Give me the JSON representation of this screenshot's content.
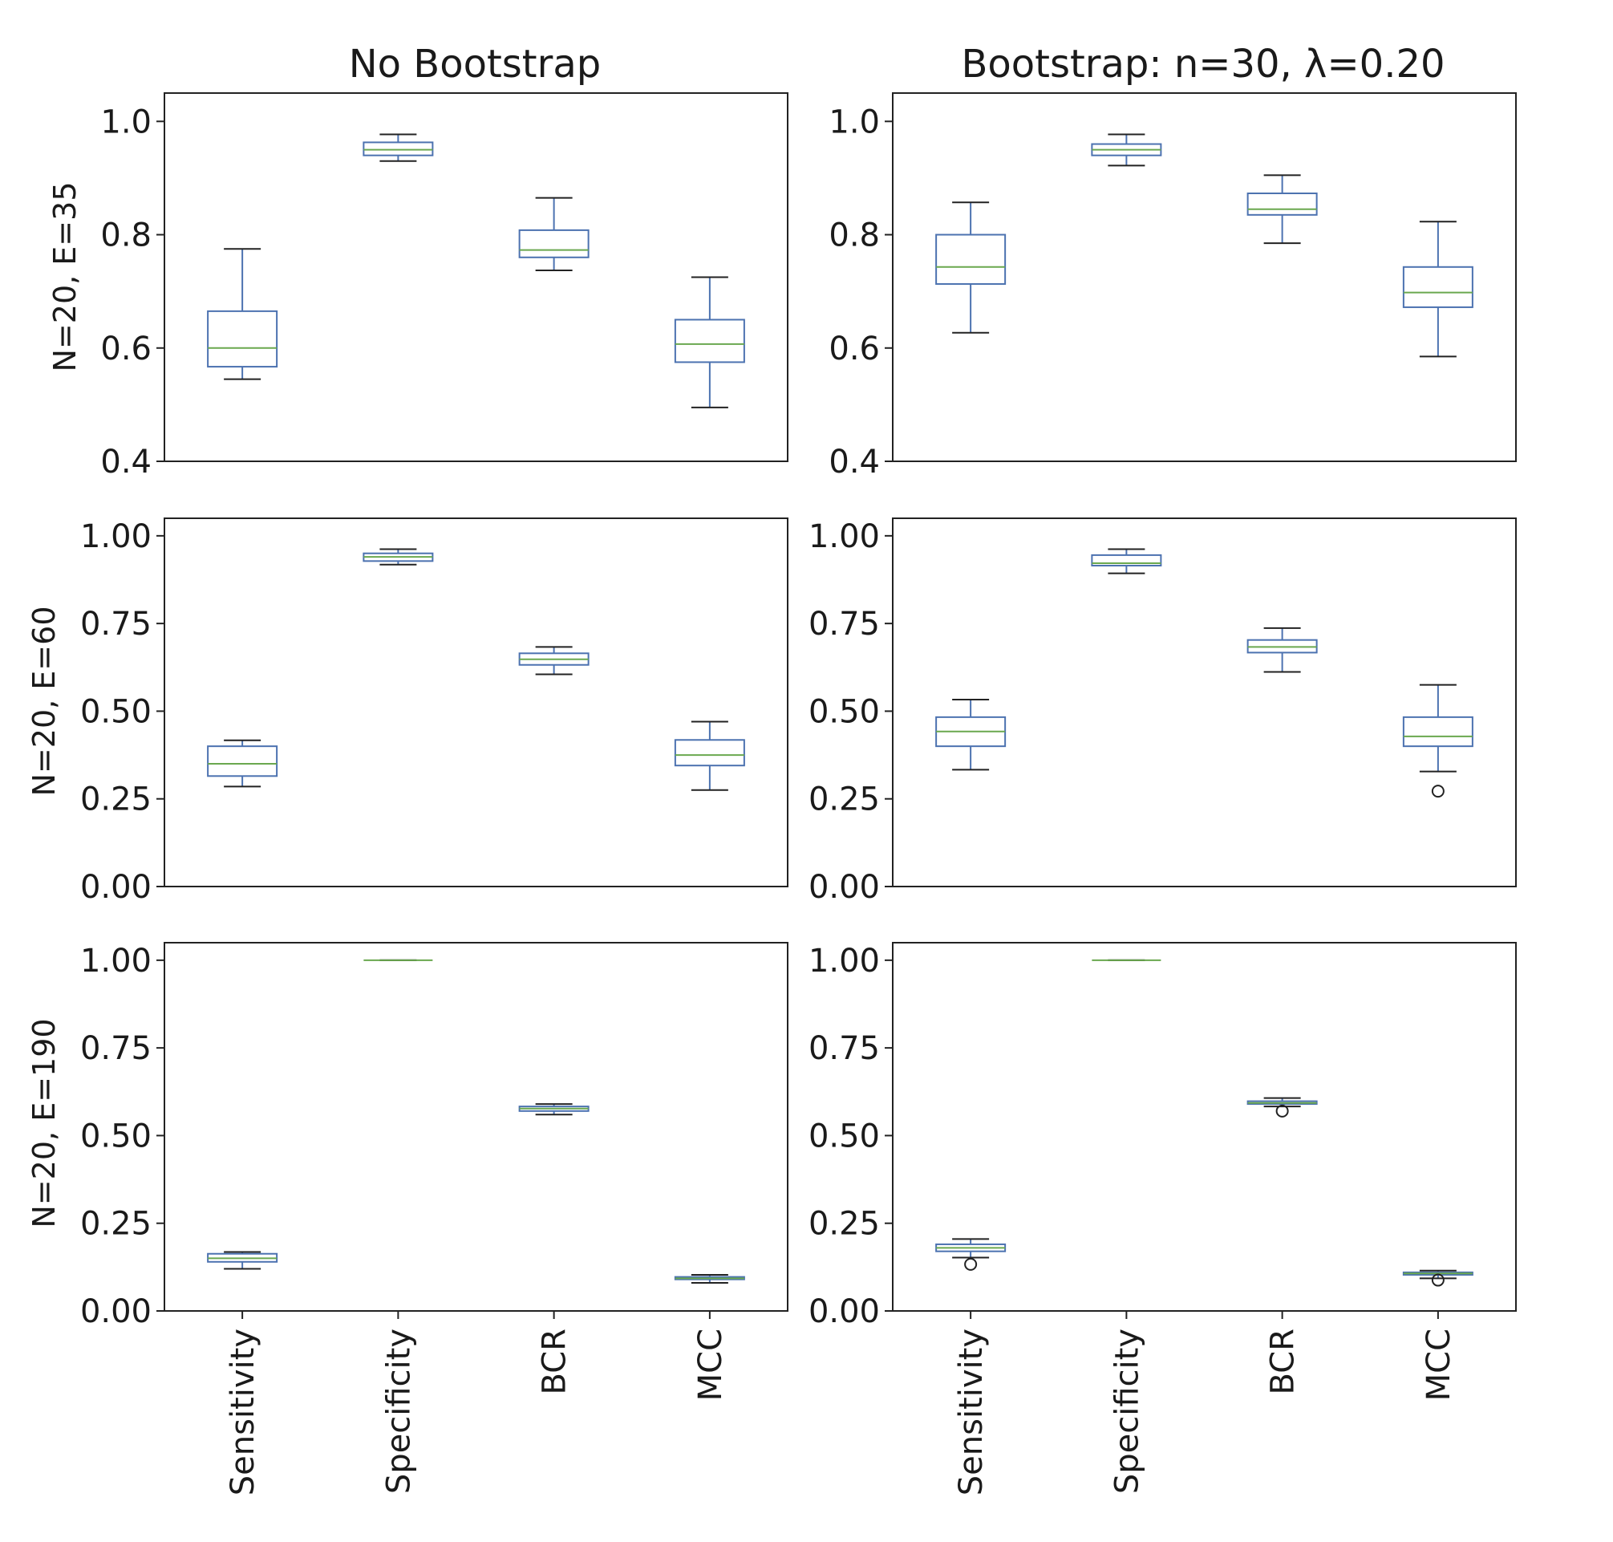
{
  "colors": {
    "box": "#4c72b0",
    "median": "#6aa84f",
    "whisker": "#222222",
    "frame": "#222222"
  },
  "column_titles": [
    "No Bootstrap",
    "Bootstrap: n=30, λ=0.20"
  ],
  "row_labels": [
    "N=20, E=35",
    "N=20, E=60",
    "N=20, E=190"
  ],
  "chart_data": [
    {
      "type": "box",
      "row": 0,
      "col": 0,
      "title": "No Bootstrap",
      "ylabel": "N=20, E=35",
      "categories": [
        "Sensitivity",
        "Specificity",
        "BCR",
        "MCC"
      ],
      "ylim": [
        0.4,
        1.05
      ],
      "yticks": [
        0.4,
        0.6,
        0.8,
        1.0
      ],
      "ytick_labels": [
        "0.4",
        "0.6",
        "0.8",
        "1.0"
      ],
      "boxes": [
        {
          "whislo": 0.545,
          "q1": 0.567,
          "med": 0.6,
          "q3": 0.665,
          "whishi": 0.775,
          "fliers": []
        },
        {
          "whislo": 0.93,
          "q1": 0.94,
          "med": 0.95,
          "q3": 0.963,
          "whishi": 0.977,
          "fliers": []
        },
        {
          "whislo": 0.737,
          "q1": 0.76,
          "med": 0.773,
          "q3": 0.808,
          "whishi": 0.865,
          "fliers": []
        },
        {
          "whislo": 0.495,
          "q1": 0.575,
          "med": 0.607,
          "q3": 0.65,
          "whishi": 0.725,
          "fliers": []
        }
      ]
    },
    {
      "type": "box",
      "row": 0,
      "col": 1,
      "title": "Bootstrap: n=30, λ=0.20",
      "ylabel": "",
      "categories": [
        "Sensitivity",
        "Specificity",
        "BCR",
        "MCC"
      ],
      "ylim": [
        0.4,
        1.05
      ],
      "yticks": [
        0.4,
        0.6,
        0.8,
        1.0
      ],
      "ytick_labels": [
        "0.4",
        "0.6",
        "0.8",
        "1.0"
      ],
      "boxes": [
        {
          "whislo": 0.627,
          "q1": 0.713,
          "med": 0.743,
          "q3": 0.8,
          "whishi": 0.857,
          "fliers": []
        },
        {
          "whislo": 0.922,
          "q1": 0.94,
          "med": 0.95,
          "q3": 0.96,
          "whishi": 0.977,
          "fliers": []
        },
        {
          "whislo": 0.785,
          "q1": 0.835,
          "med": 0.845,
          "q3": 0.873,
          "whishi": 0.905,
          "fliers": []
        },
        {
          "whislo": 0.585,
          "q1": 0.672,
          "med": 0.698,
          "q3": 0.743,
          "whishi": 0.823,
          "fliers": []
        }
      ]
    },
    {
      "type": "box",
      "row": 1,
      "col": 0,
      "title": "",
      "ylabel": "N=20, E=60",
      "categories": [
        "Sensitivity",
        "Specificity",
        "BCR",
        "MCC"
      ],
      "ylim": [
        0.0,
        1.05
      ],
      "yticks": [
        0.0,
        0.25,
        0.5,
        0.75,
        1.0
      ],
      "ytick_labels": [
        "0.00",
        "0.25",
        "0.50",
        "0.75",
        "1.00"
      ],
      "boxes": [
        {
          "whislo": 0.285,
          "q1": 0.315,
          "med": 0.35,
          "q3": 0.4,
          "whishi": 0.417,
          "fliers": []
        },
        {
          "whislo": 0.918,
          "q1": 0.928,
          "med": 0.94,
          "q3": 0.95,
          "whishi": 0.962,
          "fliers": []
        },
        {
          "whislo": 0.605,
          "q1": 0.632,
          "med": 0.648,
          "q3": 0.665,
          "whishi": 0.683,
          "fliers": []
        },
        {
          "whislo": 0.275,
          "q1": 0.345,
          "med": 0.375,
          "q3": 0.418,
          "whishi": 0.47,
          "fliers": []
        }
      ]
    },
    {
      "type": "box",
      "row": 1,
      "col": 1,
      "title": "",
      "ylabel": "",
      "categories": [
        "Sensitivity",
        "Specificity",
        "BCR",
        "MCC"
      ],
      "ylim": [
        0.0,
        1.05
      ],
      "yticks": [
        0.0,
        0.25,
        0.5,
        0.75,
        1.0
      ],
      "ytick_labels": [
        "0.00",
        "0.25",
        "0.50",
        "0.75",
        "1.00"
      ],
      "boxes": [
        {
          "whislo": 0.333,
          "q1": 0.4,
          "med": 0.442,
          "q3": 0.483,
          "whishi": 0.533,
          "fliers": []
        },
        {
          "whislo": 0.893,
          "q1": 0.915,
          "med": 0.922,
          "q3": 0.945,
          "whishi": 0.962,
          "fliers": []
        },
        {
          "whislo": 0.612,
          "q1": 0.667,
          "med": 0.683,
          "q3": 0.703,
          "whishi": 0.737,
          "fliers": []
        },
        {
          "whislo": 0.328,
          "q1": 0.4,
          "med": 0.428,
          "q3": 0.483,
          "whishi": 0.575,
          "fliers": [
            0.272
          ]
        }
      ]
    },
    {
      "type": "box",
      "row": 2,
      "col": 0,
      "title": "",
      "ylabel": "N=20, E=190",
      "categories": [
        "Sensitivity",
        "Specificity",
        "BCR",
        "MCC"
      ],
      "ylim": [
        0.0,
        1.05
      ],
      "yticks": [
        0.0,
        0.25,
        0.5,
        0.75,
        1.0
      ],
      "ytick_labels": [
        "0.00",
        "0.25",
        "0.50",
        "0.75",
        "1.00"
      ],
      "boxes": [
        {
          "whislo": 0.12,
          "q1": 0.14,
          "med": 0.15,
          "q3": 0.163,
          "whishi": 0.168,
          "fliers": []
        },
        {
          "whislo": 1.0,
          "q1": 1.0,
          "med": 1.0,
          "q3": 1.0,
          "whishi": 1.0,
          "fliers": []
        },
        {
          "whislo": 0.56,
          "q1": 0.57,
          "med": 0.577,
          "q3": 0.583,
          "whishi": 0.59,
          "fliers": []
        },
        {
          "whislo": 0.08,
          "q1": 0.09,
          "med": 0.093,
          "q3": 0.097,
          "whishi": 0.103,
          "fliers": []
        }
      ]
    },
    {
      "type": "box",
      "row": 2,
      "col": 1,
      "title": "",
      "ylabel": "",
      "categories": [
        "Sensitivity",
        "Specificity",
        "BCR",
        "MCC"
      ],
      "ylim": [
        0.0,
        1.05
      ],
      "yticks": [
        0.0,
        0.25,
        0.5,
        0.75,
        1.0
      ],
      "ytick_labels": [
        "0.00",
        "0.25",
        "0.50",
        "0.75",
        "1.00"
      ],
      "boxes": [
        {
          "whislo": 0.152,
          "q1": 0.17,
          "med": 0.18,
          "q3": 0.19,
          "whishi": 0.205,
          "fliers": [
            0.133
          ]
        },
        {
          "whislo": 1.0,
          "q1": 1.0,
          "med": 1.0,
          "q3": 1.0,
          "whishi": 1.0,
          "fliers": []
        },
        {
          "whislo": 0.583,
          "q1": 0.59,
          "med": 0.593,
          "q3": 0.598,
          "whishi": 0.607,
          "fliers": [
            0.57
          ]
        },
        {
          "whislo": 0.093,
          "q1": 0.103,
          "med": 0.107,
          "q3": 0.11,
          "whishi": 0.115,
          "fliers": [
            0.088
          ]
        }
      ]
    }
  ]
}
